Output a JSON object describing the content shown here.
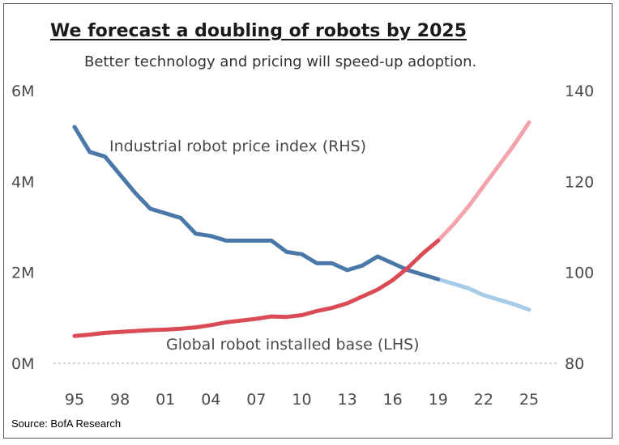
{
  "title": "We forecast a doubling of robots by 2025",
  "subtitle": "Better technology and pricing will speed-up adoption.",
  "source": "Source: BofA Research",
  "chart_data": {
    "type": "line",
    "x_tick_labels": [
      "95",
      "98",
      "01",
      "04",
      "07",
      "10",
      "13",
      "16",
      "19",
      "22",
      "25"
    ],
    "x_tick_values": [
      1995,
      1998,
      2001,
      2004,
      2007,
      2010,
      2013,
      2016,
      2019,
      2022,
      2025
    ],
    "xlim": [
      1995,
      2025
    ],
    "y_left": {
      "ticks": [
        0,
        2,
        4,
        6
      ],
      "tick_labels": [
        "0M",
        "2M",
        "4M",
        "6M"
      ],
      "range": [
        0,
        6
      ]
    },
    "y_right": {
      "ticks": [
        80,
        100,
        120,
        140
      ],
      "tick_labels": [
        "80",
        "100",
        "120",
        "140"
      ],
      "range": [
        80,
        140
      ]
    },
    "gridline_at_zero": true,
    "series": [
      {
        "name": "Industrial robot price index (RHS)",
        "axis": "right",
        "color_actual": "#4a78a8",
        "color_forecast": "#a8cbe8",
        "actual": {
          "x": [
            1995,
            1996,
            1997,
            1998,
            1999,
            2000,
            2001,
            2002,
            2003,
            2004,
            2005,
            2006,
            2007,
            2008,
            2009,
            2010,
            2011,
            2012,
            2013,
            2014,
            2015,
            2016,
            2017,
            2018,
            2019
          ],
          "y": [
            132,
            126.5,
            125.5,
            121.5,
            117.5,
            114,
            113,
            112,
            108.5,
            108,
            107,
            107,
            107,
            107,
            104.5,
            104,
            102,
            102,
            100.5,
            101.5,
            103.5,
            102,
            100.5,
            99.5,
            98.5
          ]
        },
        "forecast": {
          "x": [
            2019,
            2020,
            2021,
            2022,
            2023,
            2024,
            2025
          ],
          "y": [
            98.5,
            97.5,
            96.5,
            95,
            94,
            93,
            91.8
          ]
        }
      },
      {
        "name": "Global robot installed base (LHS)",
        "axis": "left",
        "color_actual": "#db4b55",
        "color_forecast": "#f4a3ac",
        "actual": {
          "x": [
            1995,
            1996,
            1997,
            1998,
            1999,
            2000,
            2001,
            2002,
            2003,
            2004,
            2005,
            2006,
            2007,
            2008,
            2009,
            2010,
            2011,
            2012,
            2013,
            2014,
            2015,
            2016,
            2017,
            2018,
            2019
          ],
          "y": [
            0.6,
            0.63,
            0.67,
            0.69,
            0.71,
            0.73,
            0.74,
            0.76,
            0.79,
            0.84,
            0.9,
            0.94,
            0.98,
            1.03,
            1.02,
            1.06,
            1.15,
            1.22,
            1.32,
            1.47,
            1.62,
            1.83,
            2.1,
            2.42,
            2.7
          ]
        },
        "forecast": {
          "x": [
            2019,
            2020,
            2021,
            2022,
            2023,
            2024,
            2025
          ],
          "y": [
            2.7,
            3.05,
            3.45,
            3.9,
            4.35,
            4.8,
            5.3
          ]
        }
      }
    ],
    "annotations": [
      {
        "text": "Industrial robot price index (RHS)",
        "series_index": 0
      },
      {
        "text": "Global robot installed base (LHS)",
        "series_index": 1
      }
    ]
  }
}
